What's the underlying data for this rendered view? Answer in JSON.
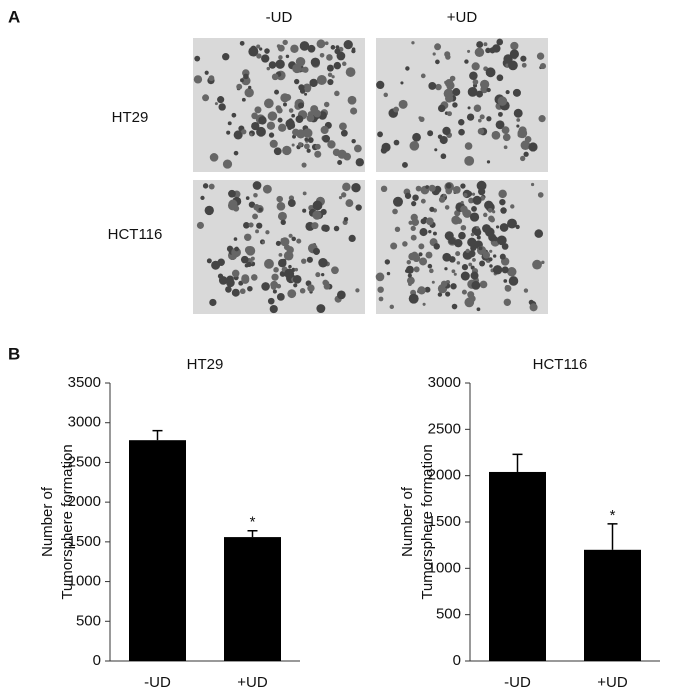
{
  "panel_labels": [
    "A",
    "B"
  ],
  "image_grid": {
    "columns": [
      "-UD",
      "+UD"
    ],
    "rows": [
      "HT29",
      "HCT116"
    ]
  },
  "chart_data": [
    {
      "type": "bar",
      "title": "HT29",
      "ylabel": [
        "Number of",
        "Tumorsphere formation"
      ],
      "categories": [
        "-UD",
        "+UD"
      ],
      "values": [
        2780,
        1560
      ],
      "errors": [
        120,
        80
      ],
      "color": "#000000",
      "significance": [
        null,
        "*"
      ],
      "ylim": [
        0,
        3500
      ],
      "yticks": [
        0,
        500,
        1000,
        1500,
        2000,
        2500,
        3000,
        3500
      ],
      "grid": false
    },
    {
      "type": "bar",
      "title": "HCT116",
      "ylabel": [
        "Number of",
        "Tumorsphere formation"
      ],
      "categories": [
        "-UD",
        "+UD"
      ],
      "values": [
        2040,
        1200
      ],
      "errors": [
        190,
        280
      ],
      "color": "#000000",
      "significance": [
        null,
        "*"
      ],
      "ylim": [
        0,
        3000
      ],
      "yticks": [
        0,
        500,
        1000,
        1500,
        2000,
        2500,
        3000
      ],
      "grid": false
    }
  ]
}
